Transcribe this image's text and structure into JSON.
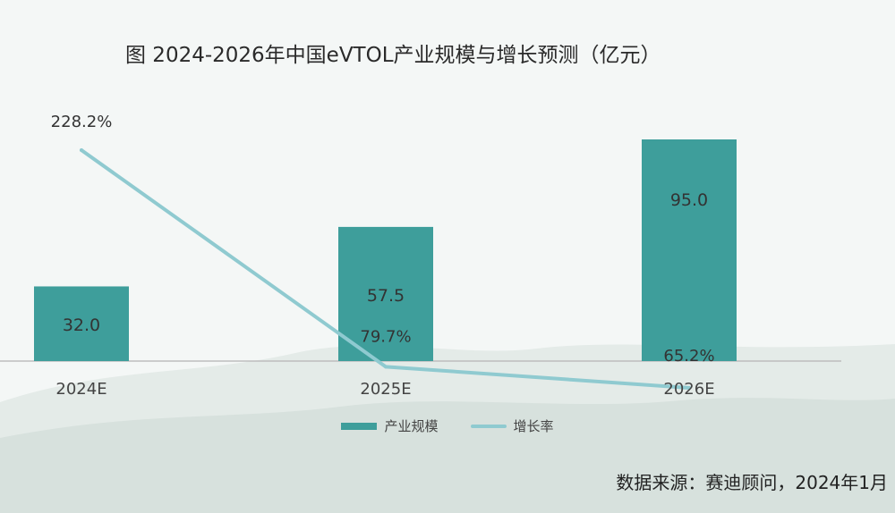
{
  "chart_data": {
    "type": "bar+line",
    "title": "图  2024-2026年中国eVTOL产业规模与增长预测（亿元）",
    "categories": [
      "2024E",
      "2025E",
      "2026E"
    ],
    "series": [
      {
        "name": "产业规模",
        "type": "bar",
        "values": [
          32.0,
          57.5,
          95.0
        ],
        "labels": [
          "32.0",
          "57.5",
          "95.0"
        ]
      },
      {
        "name": "增长率",
        "type": "line",
        "values": [
          228.2,
          79.7,
          65.2
        ],
        "labels": [
          "228.2%",
          "79.7%",
          "65.2%"
        ]
      }
    ],
    "legend_position": "bottom",
    "colors": {
      "bar": "#3e9e9b",
      "line": "#8fcad0",
      "axis": "#bdbdbd"
    }
  },
  "source": "数据来源：赛迪顾问，2024年1月"
}
